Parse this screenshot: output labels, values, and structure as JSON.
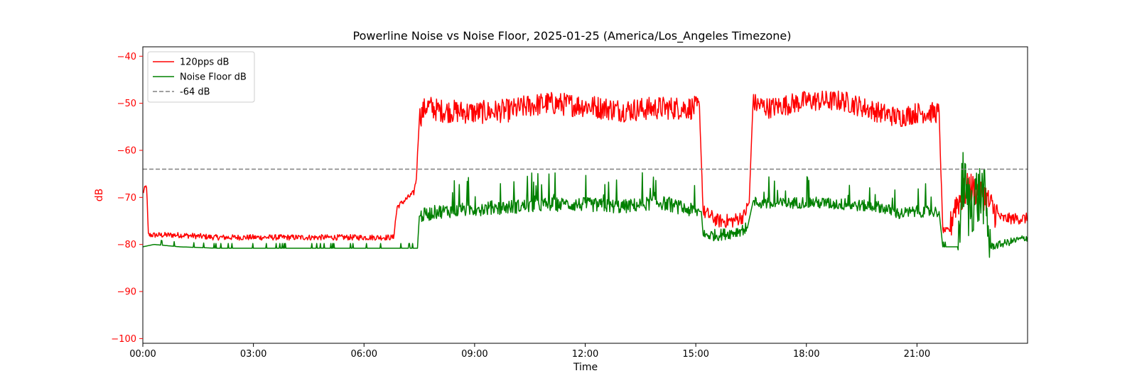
{
  "chart_data": {
    "type": "line",
    "title": "Powerline Noise vs Noise Floor, 2025-01-25 (America/Los_Angeles Timezone)",
    "xlabel": "Time",
    "ylabel": "dB",
    "x_unit": "hour of day",
    "xlim": [
      0,
      24
    ],
    "ylim": [
      -101,
      -38
    ],
    "x_ticks": [
      0,
      3,
      6,
      9,
      12,
      15,
      18,
      21
    ],
    "x_tick_labels": [
      "00:00",
      "03:00",
      "06:00",
      "09:00",
      "12:00",
      "15:00",
      "18:00",
      "21:00"
    ],
    "y_ticks": [
      -40,
      -50,
      -60,
      -70,
      -80,
      -90,
      -100
    ],
    "y_tick_labels": [
      "−40",
      "−50",
      "−60",
      "−70",
      "−80",
      "−90",
      "−100"
    ],
    "ylabel_color": "#ff0000",
    "grid": false,
    "legend_position": "top-left",
    "series": [
      {
        "name": "120pps dB",
        "color": "#ff0000",
        "style": "solid",
        "points": [
          [
            0.0,
            -69
          ],
          [
            0.1,
            -67.5
          ],
          [
            0.15,
            -78
          ],
          [
            1.0,
            -78
          ],
          [
            2.0,
            -78.5
          ],
          [
            3.0,
            -78.5
          ],
          [
            4.0,
            -78.5
          ],
          [
            5.0,
            -78.5
          ],
          [
            6.0,
            -78.5
          ],
          [
            6.8,
            -78.5
          ],
          [
            6.9,
            -72
          ],
          [
            7.2,
            -70
          ],
          [
            7.35,
            -69
          ],
          [
            7.42,
            -66
          ],
          [
            7.5,
            -53
          ],
          [
            7.7,
            -50.5
          ],
          [
            8.0,
            -51.5
          ],
          [
            9.0,
            -52
          ],
          [
            10.0,
            -51.5
          ],
          [
            10.5,
            -50.5
          ],
          [
            11.0,
            -50
          ],
          [
            12.0,
            -50.5
          ],
          [
            13.0,
            -51.5
          ],
          [
            14.0,
            -51
          ],
          [
            15.0,
            -51
          ],
          [
            15.1,
            -51
          ],
          [
            15.2,
            -73
          ],
          [
            15.6,
            -75
          ],
          [
            16.0,
            -75
          ],
          [
            16.3,
            -74
          ],
          [
            16.45,
            -71
          ],
          [
            16.55,
            -50
          ],
          [
            17.0,
            -51
          ],
          [
            18.0,
            -49.5
          ],
          [
            19.0,
            -49.5
          ],
          [
            20.0,
            -52
          ],
          [
            20.5,
            -53
          ],
          [
            21.0,
            -52
          ],
          [
            21.6,
            -52
          ],
          [
            21.7,
            -77
          ],
          [
            21.9,
            -77
          ],
          [
            22.0,
            -72
          ],
          [
            22.4,
            -68
          ],
          [
            22.8,
            -69
          ],
          [
            23.0,
            -72
          ],
          [
            23.3,
            -74.5
          ],
          [
            23.7,
            -74.5
          ],
          [
            24.0,
            -74.5
          ]
        ]
      },
      {
        "name": "Noise Floor dB",
        "color": "#008000",
        "style": "solid",
        "points": [
          [
            0.0,
            -80.5
          ],
          [
            0.3,
            -80
          ],
          [
            1.0,
            -80.5
          ],
          [
            2.0,
            -80.8
          ],
          [
            3.0,
            -80.8
          ],
          [
            4.0,
            -80.8
          ],
          [
            5.0,
            -80.8
          ],
          [
            6.0,
            -80.8
          ],
          [
            7.0,
            -80.8
          ],
          [
            7.45,
            -80.8
          ],
          [
            7.5,
            -74
          ],
          [
            8.0,
            -73
          ],
          [
            9.0,
            -72.5
          ],
          [
            10.0,
            -72
          ],
          [
            11.0,
            -71.5
          ],
          [
            12.0,
            -71.5
          ],
          [
            13.0,
            -72
          ],
          [
            14.0,
            -71
          ],
          [
            15.0,
            -73
          ],
          [
            15.15,
            -73
          ],
          [
            15.2,
            -78
          ],
          [
            15.6,
            -78
          ],
          [
            16.0,
            -77.5
          ],
          [
            16.4,
            -76.5
          ],
          [
            16.55,
            -71
          ],
          [
            17.0,
            -71.5
          ],
          [
            18.0,
            -71
          ],
          [
            19.0,
            -71.5
          ],
          [
            20.0,
            -72
          ],
          [
            20.5,
            -73.5
          ],
          [
            21.0,
            -73
          ],
          [
            21.6,
            -73
          ],
          [
            21.7,
            -80.5
          ],
          [
            22.1,
            -80.5
          ],
          [
            22.25,
            -66
          ],
          [
            22.4,
            -72
          ],
          [
            22.6,
            -70
          ],
          [
            22.8,
            -69
          ],
          [
            23.0,
            -80.5
          ],
          [
            23.5,
            -79.5
          ],
          [
            24.0,
            -78.5
          ]
        ]
      },
      {
        "name": "-64 dB",
        "color": "#808080",
        "style": "dashed",
        "points": [
          [
            0,
            -64
          ],
          [
            24,
            -64
          ]
        ]
      }
    ]
  }
}
